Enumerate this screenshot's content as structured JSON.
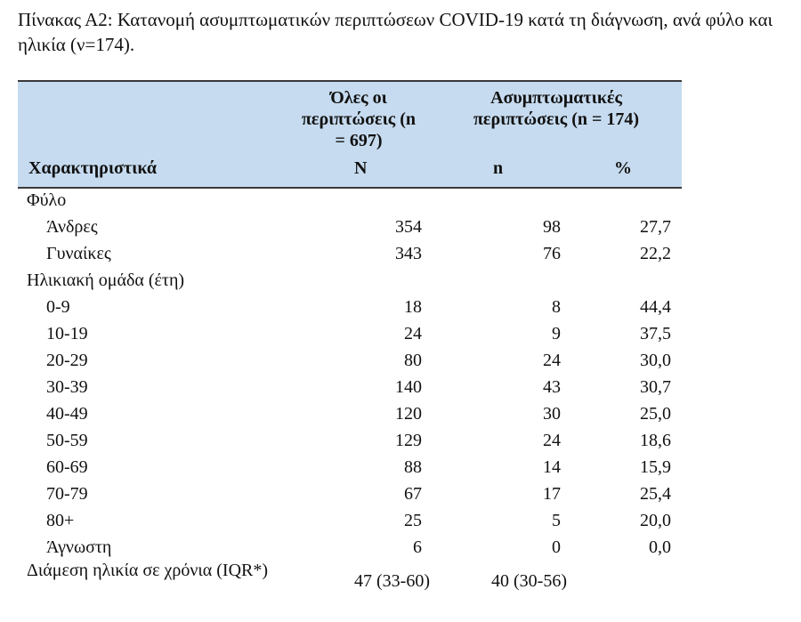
{
  "title": "Πίνακας Α2: Κατανομή ασυμπτωματικών περιπτώσεων COVID-19 κατά τη διάγνωση, ανά φύλο και ηλικία (ν=174).",
  "header": {
    "all_cases": "Όλες οι περιπτώσεις (n = 697)",
    "asym_cases": "Ασυμπτωματικές περιπτώσεις (n = 174)",
    "characteristics": "Χαρακτηριστικά",
    "N": "N",
    "n": "n",
    "pct": "%"
  },
  "rows": [
    {
      "label": "Φύλο",
      "type": "group",
      "N": "",
      "n": "",
      "pct": ""
    },
    {
      "label": "Άνδρες",
      "type": "sub",
      "N": "354",
      "n": "98",
      "pct": "27,7"
    },
    {
      "label": "Γυναίκες",
      "type": "sub",
      "N": "343",
      "n": "76",
      "pct": "22,2"
    },
    {
      "label": "Ηλικιακή ομάδα (έτη)",
      "type": "group",
      "N": "",
      "n": "",
      "pct": ""
    },
    {
      "label": "0-9",
      "type": "sub",
      "N": "18",
      "n": "8",
      "pct": "44,4"
    },
    {
      "label": "10-19",
      "type": "sub",
      "N": "24",
      "n": "9",
      "pct": "37,5"
    },
    {
      "label": "20-29",
      "type": "sub",
      "N": "80",
      "n": "24",
      "pct": "30,0"
    },
    {
      "label": "30-39",
      "type": "sub",
      "N": "140",
      "n": "43",
      "pct": "30,7"
    },
    {
      "label": "40-49",
      "type": "sub",
      "N": "120",
      "n": "30",
      "pct": "25,0"
    },
    {
      "label": "50-59",
      "type": "sub",
      "N": "129",
      "n": "24",
      "pct": "18,6"
    },
    {
      "label": "60-69",
      "type": "sub",
      "N": "88",
      "n": "14",
      "pct": "15,9"
    },
    {
      "label": "70-79",
      "type": "sub",
      "N": "67",
      "n": "17",
      "pct": "25,4"
    },
    {
      "label": "80+",
      "type": "sub",
      "N": "25",
      "n": "5",
      "pct": "20,0"
    },
    {
      "label": "Άγνωστη",
      "type": "sub",
      "N": "6",
      "n": "0",
      "pct": "0,0"
    }
  ],
  "median": {
    "label": "Διάμεση ηλικία σε χρόνια (IQR*)",
    "all": "47 (33-60)",
    "asym": "40 (30-56)"
  },
  "colors": {
    "header_bg": "#c6dbef"
  }
}
